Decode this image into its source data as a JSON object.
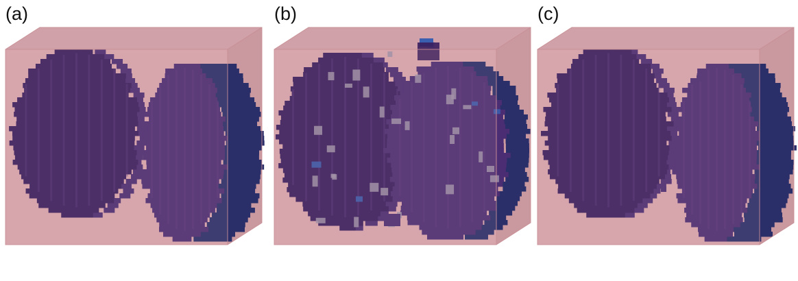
{
  "panels": [
    {
      "label": "(a)",
      "variant": "clean"
    },
    {
      "label": "(b)",
      "variant": "noisy"
    },
    {
      "label": "(c)",
      "variant": "nearly-clean"
    }
  ],
  "colors": {
    "box_fill": "#d9a3a8",
    "box_back": "#caa0a6",
    "box_edge": "#c88e95",
    "voxel_dark": "#3a1f5e",
    "voxel_mid": "#4a2d72",
    "voxel_blue": "#2a2f6a",
    "voxel_highlight": "#5b3a82",
    "noise_voxel": "#9b8fa8",
    "noise_blue": "#3b5fb0"
  }
}
